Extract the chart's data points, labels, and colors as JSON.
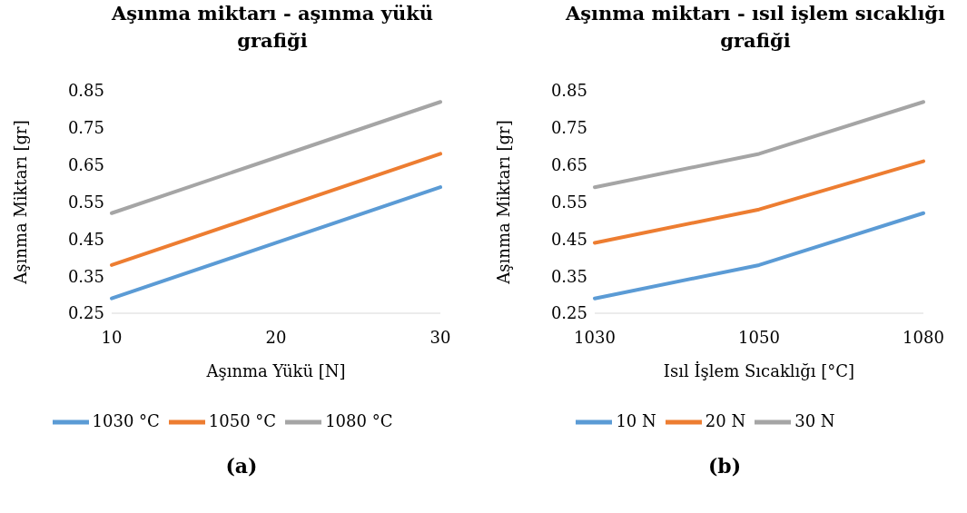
{
  "chart_data": [
    {
      "type": "line",
      "title": "Aşınma miktarı - aşınma yükü grafiği",
      "xlabel": "Aşınma Yükü [N]",
      "ylabel": "Aşınma Miktarı [gr]",
      "categories": [
        "10",
        "20",
        "30"
      ],
      "ylim": [
        0.25,
        0.85
      ],
      "yticks": [
        0.25,
        0.35,
        0.45,
        0.55,
        0.65,
        0.75,
        0.85
      ],
      "legend": "bottom",
      "annotations": [
        "(a)"
      ],
      "series": [
        {
          "name": "1030 °C",
          "color": "#5b9bd5",
          "values": [
            0.29,
            0.44,
            0.59
          ]
        },
        {
          "name": "1050 °C",
          "color": "#ed7d31",
          "values": [
            0.38,
            0.53,
            0.68
          ]
        },
        {
          "name": "1080 °C",
          "color": "#a5a5a5",
          "values": [
            0.52,
            0.67,
            0.82
          ]
        }
      ]
    },
    {
      "type": "line",
      "title": "Aşınma miktarı - ısıl işlem sıcaklığı grafiği",
      "xlabel": "Isıl İşlem Sıcaklığı [°C]",
      "ylabel": "Aşınma Miktarı [gr]",
      "categories": [
        "1030",
        "1050",
        "1080"
      ],
      "ylim": [
        0.25,
        0.85
      ],
      "yticks": [
        0.25,
        0.35,
        0.45,
        0.55,
        0.65,
        0.75,
        0.85
      ],
      "legend": "bottom",
      "annotations": [
        "(b)"
      ],
      "series": [
        {
          "name": "10 N",
          "color": "#5b9bd5",
          "values": [
            0.29,
            0.38,
            0.52
          ]
        },
        {
          "name": "20 N",
          "color": "#ed7d31",
          "values": [
            0.44,
            0.53,
            0.66
          ]
        },
        {
          "name": "30 N",
          "color": "#a5a5a5",
          "values": [
            0.59,
            0.68,
            0.82
          ]
        }
      ]
    }
  ]
}
